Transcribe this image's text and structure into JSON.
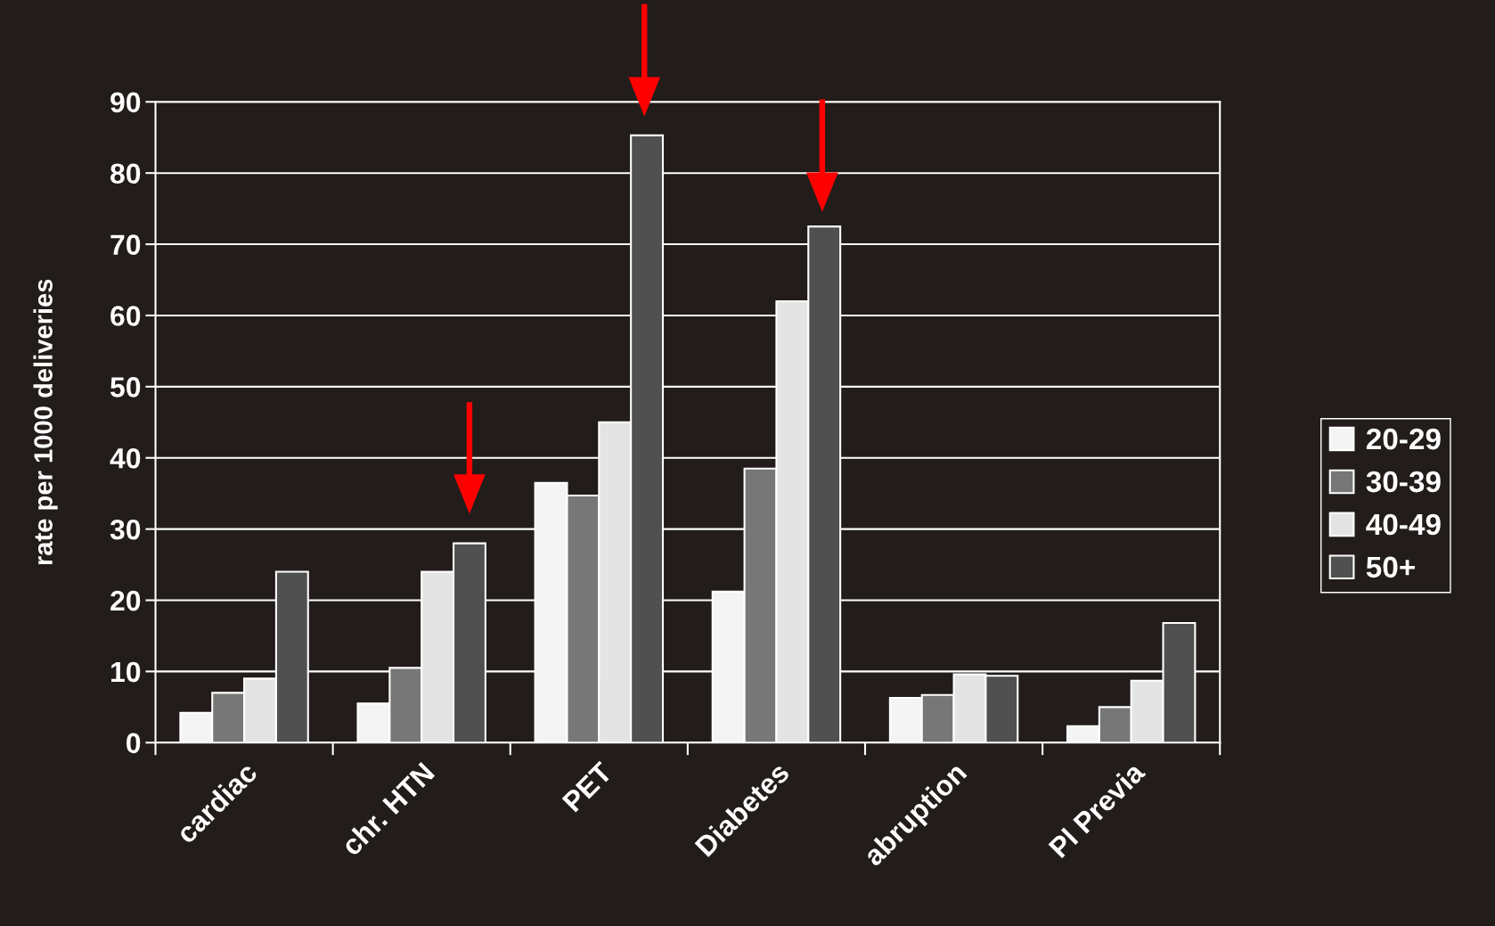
{
  "chart_data": {
    "type": "bar",
    "ylabel": "rate per 1000 deliveries",
    "categories": [
      "cardiac",
      "chr. HTN",
      "PET",
      "Diabetes",
      "abruption",
      "Pl Previa"
    ],
    "series": [
      {
        "name": "20-29",
        "color": "#f4f4f4",
        "values": [
          4.2,
          5.5,
          36.5,
          21.2,
          6.3,
          2.3
        ]
      },
      {
        "name": "30-39",
        "color": "#777777",
        "values": [
          7,
          10.5,
          34.7,
          38.5,
          6.7,
          5
        ]
      },
      {
        "name": "40-49",
        "color": "#e4e4e4",
        "values": [
          9,
          24,
          45,
          62,
          9.6,
          8.7
        ]
      },
      {
        "name": "50+",
        "color": "#505050",
        "values": [
          24,
          28,
          85.3,
          72.5,
          9.4,
          16.8
        ]
      }
    ],
    "ylim": [
      0,
      90
    ],
    "yticks": [
      0,
      10,
      20,
      30,
      40,
      50,
      60,
      70,
      80,
      90
    ],
    "grid": "y",
    "legend": "right"
  }
}
